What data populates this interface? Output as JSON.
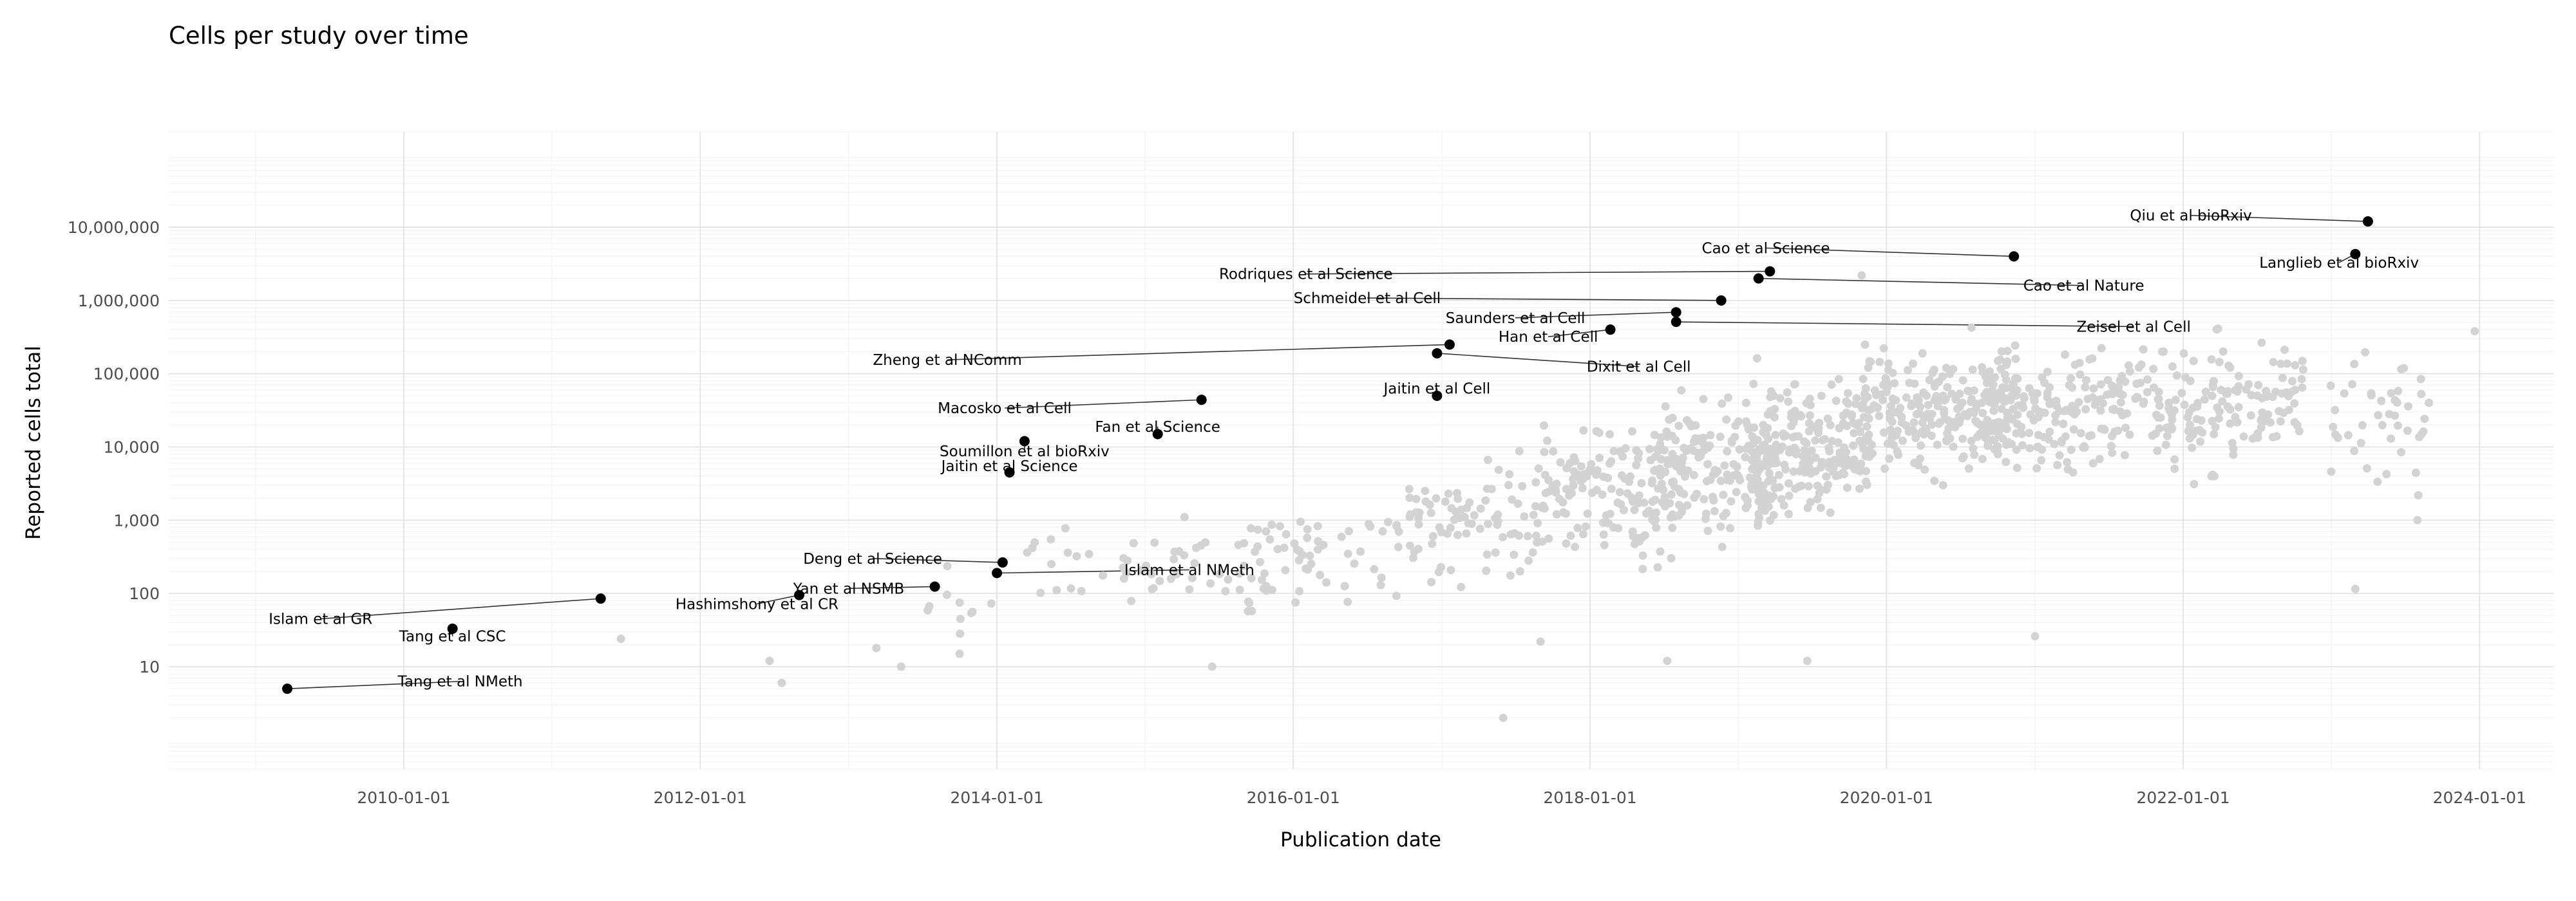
{
  "chart_data": {
    "type": "scatter",
    "title": "Cells per study over time",
    "xlabel": "Publication date",
    "ylabel": "Reported cells total",
    "x_scale": "date",
    "y_scale": "log10",
    "xlim": [
      "2008-06-01",
      "2024-07-01"
    ],
    "ylim": [
      0.4,
      200000000
    ],
    "x_ticks": [
      "2010-01-01",
      "2012-01-01",
      "2014-01-01",
      "2016-01-01",
      "2018-01-01",
      "2020-01-01",
      "2022-01-01",
      "2024-01-01"
    ],
    "y_ticks": [
      10,
      100,
      1000,
      10000,
      100000,
      1000000,
      10000000
    ],
    "y_tick_labels": [
      "10",
      "100",
      "1,000",
      "10,000",
      "100,000",
      "1,000,000",
      "10,000,000"
    ],
    "grid": true,
    "legend": "none",
    "colors": {
      "background_points": "#d3d3d3",
      "highlight_points": "#000000",
      "grid_major": "#e3e3e3",
      "grid_minor": "#f3f3f3",
      "leader_line": "#333333"
    },
    "highlighted": [
      {
        "label": "Tang et al NMeth",
        "date": "2009-03-20",
        "cells": 5,
        "label_date": "2010-05-20",
        "label_cells": 6.3
      },
      {
        "label": "Islam et al GR",
        "date": "2011-05-01",
        "cells": 85,
        "label_date": "2009-06-10",
        "label_cells": 45
      },
      {
        "label": "Tang et al CSC",
        "date": "2010-05-01",
        "cells": 33,
        "label_date": "2010-05-01",
        "label_cells": 26
      },
      {
        "label": "Hashimshony et al CR",
        "date": "2012-09-01",
        "cells": 95,
        "label_date": "2012-05-20",
        "label_cells": 72
      },
      {
        "label": "Yan et al NSMB",
        "date": "2013-08-01",
        "cells": 124,
        "label_date": "2013-01-01",
        "label_cells": 117
      },
      {
        "label": "Deng et al Science",
        "date": "2014-01-15",
        "cells": 265,
        "label_date": "2013-03-01",
        "label_cells": 300
      },
      {
        "label": "Islam et al NMeth",
        "date": "2014-01-01",
        "cells": 190,
        "label_date": "2015-04-20",
        "label_cells": 210
      },
      {
        "label": "Jaitin et al Science",
        "date": "2014-02-01",
        "cells": 4500,
        "label_date": "2014-02-01",
        "label_cells": 5500
      },
      {
        "label": "Soumillon et al bioRxiv",
        "date": "2014-03-10",
        "cells": 12000,
        "label_date": "2014-03-10",
        "label_cells": 8800
      },
      {
        "label": "Macosko et al Cell",
        "date": "2015-05-20",
        "cells": 44000,
        "label_date": "2014-01-20",
        "label_cells": 34000
      },
      {
        "label": "Fan et al Science",
        "date": "2015-02-01",
        "cells": 15000,
        "label_date": "2015-02-01",
        "label_cells": 19000
      },
      {
        "label": "Zheng et al NComm",
        "date": "2017-01-20",
        "cells": 250000,
        "label_date": "2013-09-01",
        "label_cells": 155000
      },
      {
        "label": "Jaitin et al Cell",
        "date": "2016-12-20",
        "cells": 50000,
        "label_date": "2016-12-20",
        "label_cells": 63000
      },
      {
        "label": "Dixit et al Cell",
        "date": "2016-12-20",
        "cells": 190000,
        "label_date": "2018-05-01",
        "label_cells": 125000
      },
      {
        "label": "Han et al Cell",
        "date": "2018-02-20",
        "cells": 400000,
        "label_date": "2017-09-20",
        "label_cells": 320000
      },
      {
        "label": "Saunders et al Cell",
        "date": "2018-08-01",
        "cells": 690000,
        "label_date": "2017-07-01",
        "label_cells": 580000
      },
      {
        "label": "Zeisel et al Cell",
        "date": "2018-08-01",
        "cells": 510000,
        "label_date": "2021-09-01",
        "label_cells": 440000
      },
      {
        "label": "Schmeidel et al Cell",
        "date": "2018-11-20",
        "cells": 1000000,
        "label_date": "2016-07-01",
        "label_cells": 1080000
      },
      {
        "label": "Rodriques et al Science",
        "date": "2019-03-20",
        "cells": 2500000,
        "label_date": "2016-02-01",
        "label_cells": 2300000
      },
      {
        "label": "Cao et al Nature",
        "date": "2019-02-20",
        "cells": 2000000,
        "label_date": "2021-05-01",
        "label_cells": 1600000
      },
      {
        "label": "Cao et al Science",
        "date": "2020-11-10",
        "cells": 4000000,
        "label_date": "2019-03-10",
        "label_cells": 5200000
      },
      {
        "label": "Qiu et al bioRxiv",
        "date": "2023-04-01",
        "cells": 12000000,
        "label_date": "2022-01-20",
        "label_cells": 14500000
      },
      {
        "label": "Langlieb et al bioRxiv",
        "date": "2023-03-01",
        "cells": 4300000,
        "label_date": "2023-01-20",
        "label_cells": 3300000
      }
    ],
    "background_clusters": [
      {
        "center_date": "2013-09-01",
        "spread_months": 4,
        "log_center": 1.85,
        "log_spread": 0.35,
        "count": 10
      },
      {
        "center_date": "2014-06-01",
        "spread_months": 4,
        "log_center": 2.35,
        "log_spread": 0.45,
        "count": 14
      },
      {
        "center_date": "2015-05-01",
        "spread_months": 6,
        "log_center": 2.35,
        "log_spread": 0.55,
        "count": 40
      },
      {
        "center_date": "2016-03-01",
        "spread_months": 6,
        "log_center": 2.5,
        "log_spread": 0.6,
        "count": 55
      },
      {
        "center_date": "2017-03-01",
        "spread_months": 6,
        "log_center": 2.9,
        "log_spread": 0.75,
        "count": 90
      },
      {
        "center_date": "2018-02-01",
        "spread_months": 5,
        "log_center": 3.4,
        "log_spread": 0.8,
        "count": 130
      },
      {
        "center_date": "2018-11-01",
        "spread_months": 5,
        "log_center": 3.7,
        "log_spread": 0.8,
        "count": 190
      },
      {
        "center_date": "2019-07-01",
        "spread_months": 5,
        "log_center": 4.0,
        "log_spread": 0.75,
        "count": 220
      },
      {
        "center_date": "2020-05-01",
        "spread_months": 6,
        "log_center": 4.45,
        "log_spread": 0.7,
        "count": 220
      },
      {
        "center_date": "2021-03-01",
        "spread_months": 6,
        "log_center": 4.5,
        "log_spread": 0.75,
        "count": 190
      },
      {
        "center_date": "2022-04-01",
        "spread_months": 7,
        "log_center": 4.6,
        "log_spread": 0.8,
        "count": 160
      },
      {
        "center_date": "2023-05-01",
        "spread_months": 4,
        "log_center": 4.4,
        "log_spread": 0.8,
        "count": 45
      }
    ],
    "background_outliers": [
      {
        "date": "2011-06-20",
        "cells": 24
      },
      {
        "date": "2012-06-20",
        "cells": 12
      },
      {
        "date": "2012-07-20",
        "cells": 6
      },
      {
        "date": "2013-03-10",
        "cells": 18
      },
      {
        "date": "2013-05-10",
        "cells": 10
      },
      {
        "date": "2013-10-01",
        "cells": 15
      },
      {
        "date": "2015-06-15",
        "cells": 10
      },
      {
        "date": "2017-06-01",
        "cells": 2
      },
      {
        "date": "2017-09-01",
        "cells": 22
      },
      {
        "date": "2018-07-10",
        "cells": 12
      },
      {
        "date": "2019-06-20",
        "cells": 12
      },
      {
        "date": "2019-11-01",
        "cells": 2200000
      },
      {
        "date": "2021-01-01",
        "cells": 26
      },
      {
        "date": "2023-03-01",
        "cells": 115
      },
      {
        "date": "2023-08-01",
        "cells": 1000
      },
      {
        "date": "2023-12-20",
        "cells": 380000
      }
    ]
  }
}
